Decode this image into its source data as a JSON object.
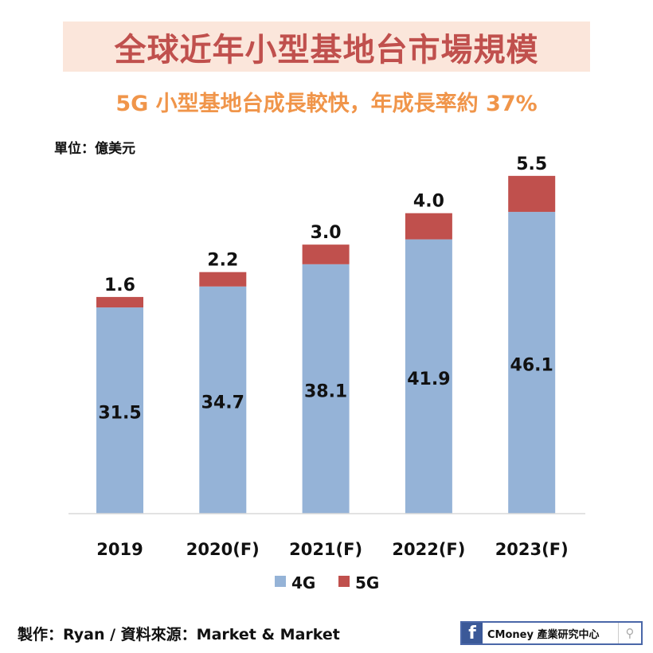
{
  "header": {
    "title": "全球近年小型基地台市場規模",
    "subtitle": "5G 小型基地台成長較快，年成長率約 37%",
    "unit": "單位：億美元"
  },
  "footer": {
    "credit": "製作：Ryan / 資料來源：Market & Market",
    "logo_f": "f",
    "logo_text": "CMoney 產業研究中心",
    "logo_icon": "search-icon"
  },
  "colors": {
    "4G": "#95b3d7",
    "5G": "#c0504d",
    "title": "#c0504d",
    "subtitle": "#f0954a"
  },
  "chart_data": {
    "type": "bar",
    "stacked": true,
    "categories": [
      "2019",
      "2020(F)",
      "2021(F)",
      "2022(F)",
      "2023(F)"
    ],
    "series": [
      {
        "name": "4G",
        "values": [
          31.5,
          34.7,
          38.1,
          41.9,
          46.1
        ],
        "labels": [
          "31.5",
          "34.7",
          "38.1",
          "41.9",
          "46.1"
        ]
      },
      {
        "name": "5G",
        "values": [
          1.6,
          2.2,
          3.0,
          4.0,
          5.5
        ],
        "labels": [
          "1.6",
          "2.2",
          "3.0",
          "4.0",
          "5.5"
        ]
      }
    ],
    "ylim": [
      0,
      55
    ],
    "grid": false,
    "legend": "bottom",
    "xlabel": "",
    "ylabel": ""
  }
}
